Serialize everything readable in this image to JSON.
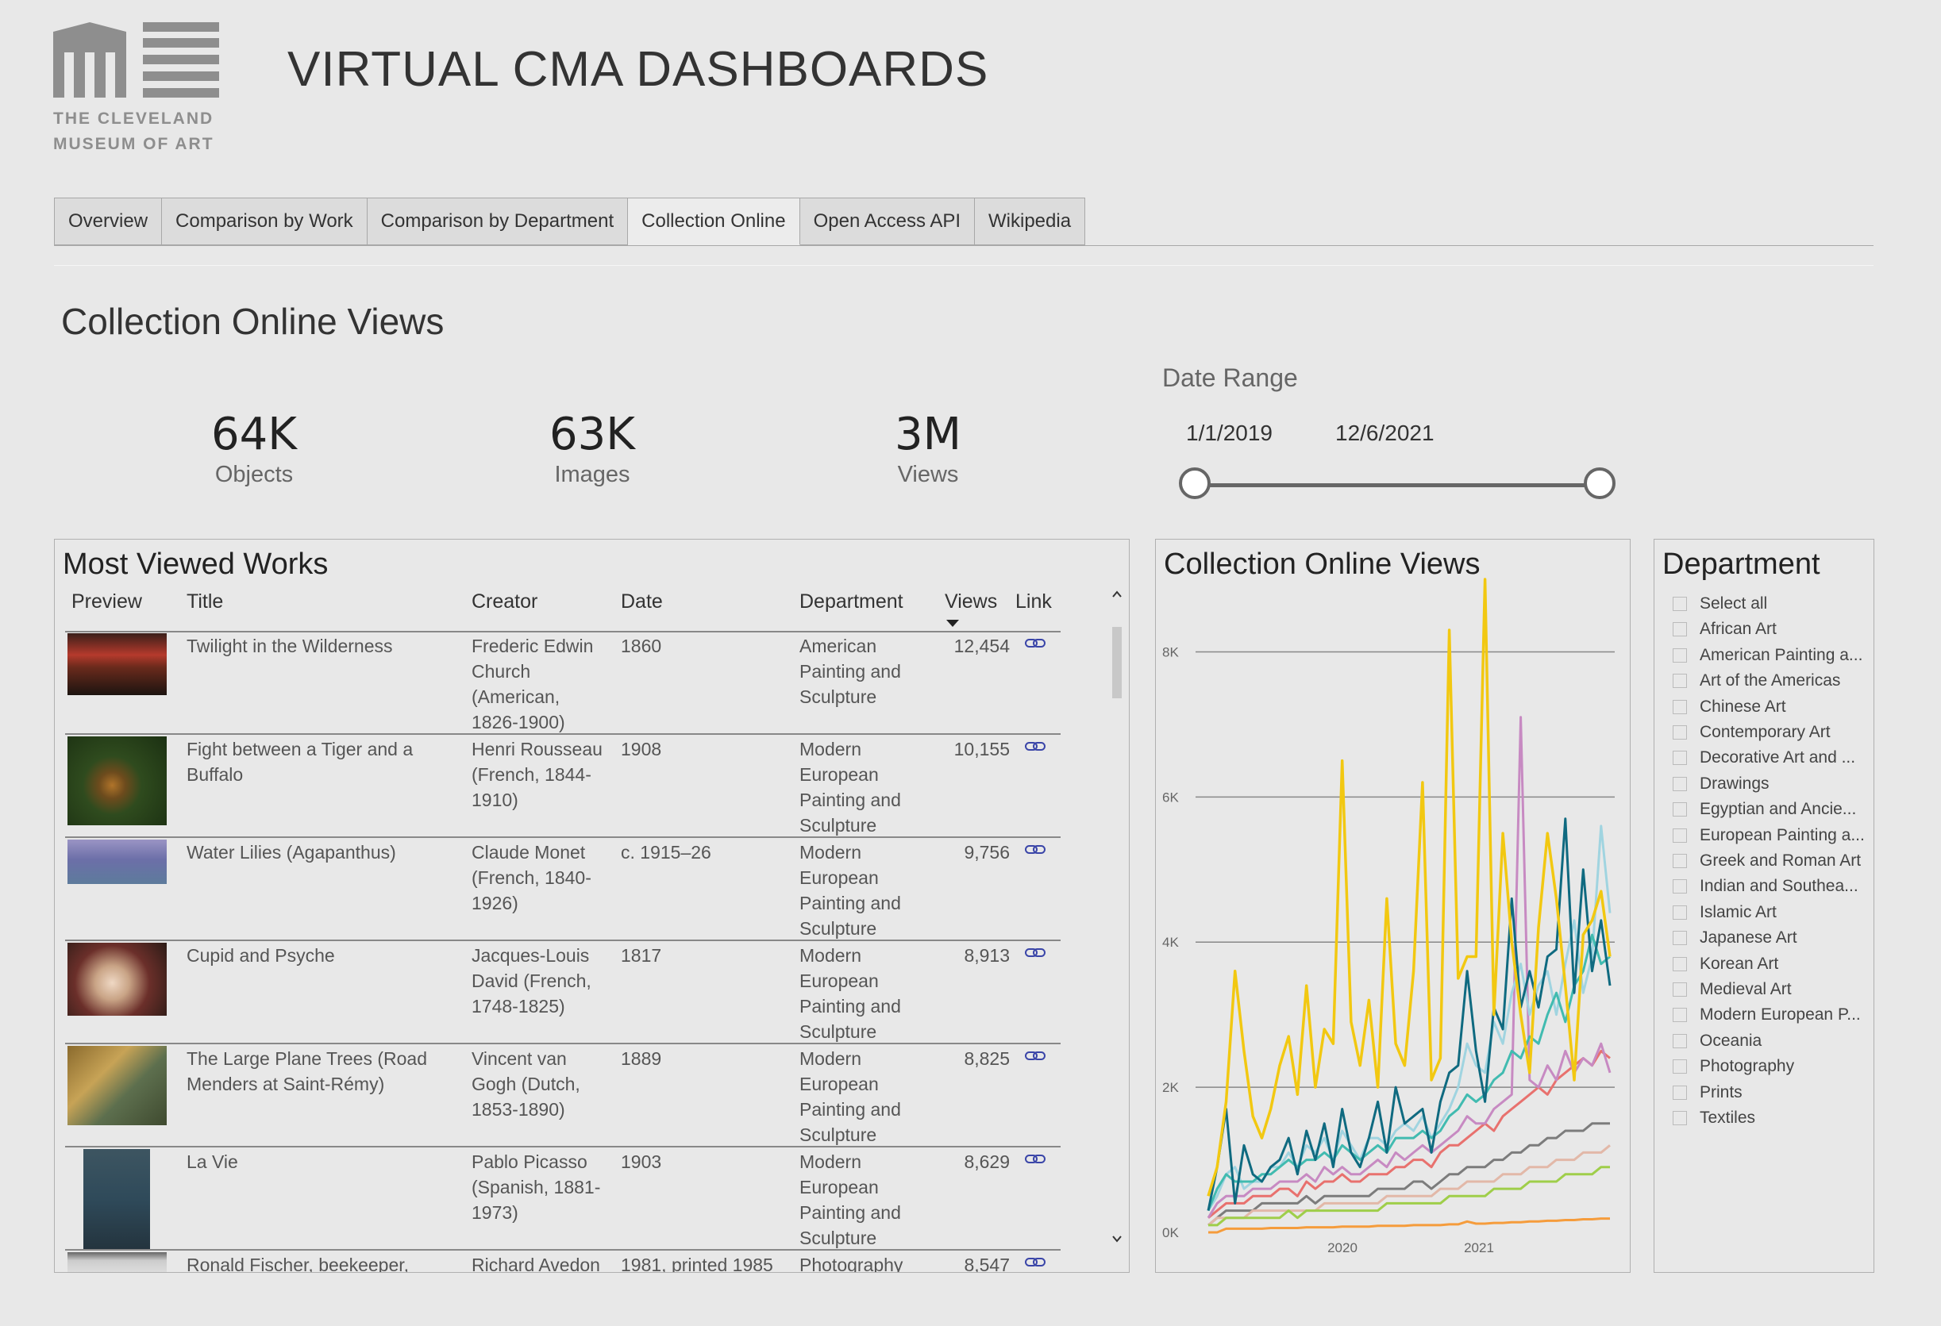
{
  "header": {
    "logo_line1": "THE CLEVELAND",
    "logo_line2": "MUSEUM OF ART",
    "title": "VIRTUAL CMA DASHBOARDS"
  },
  "tabs": [
    {
      "label": "Overview",
      "active": false
    },
    {
      "label": "Comparison by Work",
      "active": false
    },
    {
      "label": "Comparison by Department",
      "active": false
    },
    {
      "label": "Collection Online",
      "active": true
    },
    {
      "label": "Open Access API",
      "active": false
    },
    {
      "label": "Wikipedia",
      "active": false
    }
  ],
  "page": {
    "heading": "Collection Online Views"
  },
  "kpis": [
    {
      "value": "64K",
      "label": "Objects"
    },
    {
      "value": "63K",
      "label": "Images"
    },
    {
      "value": "3M",
      "label": "Views"
    }
  ],
  "date_range": {
    "label": "Date Range",
    "start": "1/1/2019",
    "end": "12/6/2021"
  },
  "works_table": {
    "title": "Most Viewed Works",
    "columns": [
      "Preview",
      "Title",
      "Creator",
      "Date",
      "Department",
      "Views",
      "Link"
    ],
    "sort_column": "Views",
    "rows": [
      {
        "title": "Twilight in the Wilderness",
        "creator": "Frederic Edwin Church (American, 1826-1900)",
        "date": "1860",
        "department": "American Painting and Sculpture",
        "views": "12,454"
      },
      {
        "title": "Fight between a Tiger and a Buffalo",
        "creator": "Henri Rousseau (French, 1844-1910)",
        "date": "1908",
        "department": "Modern European Painting and Sculpture",
        "views": "10,155"
      },
      {
        "title": "Water Lilies (Agapanthus)",
        "creator": "Claude Monet (French, 1840-1926)",
        "date": "c. 1915–26",
        "department": "Modern European Painting and Sculpture",
        "views": "9,756"
      },
      {
        "title": "Cupid and Psyche",
        "creator": "Jacques-Louis David (French, 1748-1825)",
        "date": "1817",
        "department": "Modern European Painting and Sculpture",
        "views": "8,913"
      },
      {
        "title": "The Large Plane Trees (Road Menders at Saint-Rémy)",
        "creator": "Vincent van Gogh (Dutch, 1853-1890)",
        "date": "1889",
        "department": "Modern European Painting and Sculpture",
        "views": "8,825"
      },
      {
        "title": "La Vie",
        "creator": "Pablo Picasso (Spanish, 1881-1973)",
        "date": "1903",
        "department": "Modern European Painting and Sculpture",
        "views": "8,629"
      },
      {
        "title": "Ronald Fischer, beekeeper,",
        "creator": "Richard Avedon",
        "date": "1981, printed 1985",
        "department": "Photography",
        "views": "8,547"
      }
    ]
  },
  "views_chart": {
    "title": "Collection Online Views",
    "chart_data": {
      "type": "line",
      "title": "Collection Online Views",
      "x_ticks": [
        "2020",
        "2021"
      ],
      "y_ticks": [
        "0K",
        "2K",
        "4K",
        "6K",
        "8K"
      ],
      "ylim": [
        0,
        9000
      ],
      "xlim": [
        "2019-01",
        "2021-12"
      ],
      "grid": true,
      "series": [
        {
          "color": "#f2c811",
          "values": [
            500,
            900,
            1800,
            3600,
            2500,
            1600,
            1300,
            1700,
            2300,
            2700,
            1900,
            3400,
            2000,
            2800,
            2600,
            6500,
            2900,
            2300,
            3200,
            2000,
            4600,
            2600,
            2300,
            3600,
            6200,
            2100,
            2400,
            8300,
            3500,
            3800,
            3800,
            9000,
            3000,
            5500,
            4000,
            3000,
            2200,
            4200,
            5500,
            4600,
            3400,
            2100,
            4100,
            4300,
            4700,
            3800
          ]
        },
        {
          "color": "#0f6a80",
          "values": [
            300,
            900,
            1700,
            400,
            1200,
            800,
            700,
            900,
            1000,
            1300,
            800,
            1400,
            1000,
            1500,
            900,
            1700,
            1100,
            900,
            1300,
            1800,
            1100,
            2000,
            1500,
            1600,
            1700,
            1100,
            1800,
            2200,
            2300,
            3600,
            2500,
            1800,
            3100,
            2800,
            4600,
            3100,
            3600,
            3100,
            3800,
            3900,
            5700,
            3300,
            5000,
            3600,
            4300,
            3400
          ]
        },
        {
          "color": "#a0d4e0",
          "values": [
            300,
            500,
            800,
            900,
            600,
            700,
            700,
            900,
            900,
            1100,
            900,
            1200,
            1100,
            1300,
            1000,
            1400,
            1200,
            1000,
            1300,
            1300,
            1200,
            1400,
            1500,
            1400,
            1600,
            1300,
            1500,
            1700,
            2000,
            2600,
            2300,
            2200,
            2900,
            2600,
            3300,
            3700,
            3000,
            3400,
            3600,
            3000,
            3700,
            4300,
            3300,
            3800,
            5600,
            4400
          ]
        },
        {
          "color": "#c78ac2",
          "values": [
            200,
            400,
            500,
            500,
            500,
            600,
            600,
            600,
            700,
            700,
            700,
            800,
            700,
            900,
            800,
            900,
            800,
            800,
            900,
            1000,
            900,
            1100,
            1000,
            1100,
            1200,
            1100,
            1200,
            1300,
            1400,
            1600,
            1500,
            1500,
            1700,
            1800,
            1900,
            7100,
            2100,
            2000,
            2300,
            2100,
            2500,
            2200,
            2400,
            2300,
            2600,
            2200
          ]
        },
        {
          "color": "#41bbb0",
          "values": [
            300,
            600,
            800,
            700,
            700,
            700,
            800,
            800,
            900,
            1000,
            900,
            1000,
            1000,
            1100,
            1000,
            1200,
            1100,
            1000,
            1100,
            1200,
            1100,
            1300,
            1300,
            1300,
            1400,
            1300,
            1400,
            1600,
            1700,
            1900,
            1800,
            1900,
            2100,
            2200,
            2500,
            2400,
            2700,
            2600,
            3000,
            3300,
            2900,
            3400,
            3600,
            4100,
            3700,
            3800
          ]
        },
        {
          "color": "#e8716e",
          "values": [
            200,
            300,
            400,
            400,
            400,
            500,
            500,
            500,
            600,
            600,
            500,
            700,
            600,
            700,
            700,
            800,
            700,
            700,
            800,
            800,
            800,
            900,
            900,
            1000,
            1000,
            900,
            1100,
            1200,
            1200,
            1300,
            1400,
            1500,
            1400,
            1600,
            1700,
            1800,
            1900,
            2000,
            1900,
            2100,
            2200,
            2300,
            2400,
            2300,
            2500,
            2400
          ]
        },
        {
          "color": "#7c7c7c",
          "values": [
            100,
            200,
            300,
            300,
            300,
            300,
            400,
            400,
            400,
            400,
            400,
            500,
            400,
            500,
            500,
            500,
            500,
            500,
            500,
            600,
            600,
            600,
            600,
            700,
            700,
            600,
            700,
            800,
            800,
            900,
            900,
            900,
            1000,
            1000,
            1100,
            1100,
            1200,
            1200,
            1300,
            1300,
            1400,
            1400,
            1400,
            1500,
            1500,
            1500
          ]
        },
        {
          "color": "#e2b8a8",
          "values": [
            100,
            200,
            200,
            200,
            200,
            300,
            300,
            300,
            300,
            300,
            300,
            300,
            300,
            400,
            400,
            400,
            400,
            400,
            400,
            400,
            500,
            500,
            500,
            500,
            500,
            500,
            600,
            600,
            600,
            700,
            700,
            700,
            700,
            800,
            800,
            800,
            900,
            900,
            900,
            1000,
            1000,
            1000,
            1100,
            1100,
            1100,
            1200
          ]
        },
        {
          "color": "#9fce4a",
          "values": [
            100,
            100,
            200,
            200,
            200,
            200,
            200,
            200,
            200,
            300,
            200,
            300,
            300,
            300,
            300,
            300,
            300,
            300,
            300,
            300,
            400,
            400,
            400,
            400,
            400,
            400,
            400,
            500,
            500,
            500,
            500,
            500,
            600,
            600,
            600,
            600,
            700,
            700,
            700,
            700,
            800,
            800,
            800,
            800,
            900,
            900
          ]
        },
        {
          "color": "#f59c3c",
          "values": [
            0,
            0,
            50,
            50,
            50,
            50,
            50,
            60,
            60,
            60,
            60,
            70,
            70,
            70,
            70,
            80,
            80,
            80,
            80,
            90,
            90,
            90,
            90,
            100,
            100,
            100,
            100,
            110,
            110,
            150,
            120,
            120,
            130,
            130,
            140,
            140,
            150,
            150,
            160,
            160,
            170,
            170,
            180,
            180,
            190,
            190
          ]
        }
      ]
    }
  },
  "department": {
    "title": "Department",
    "items": [
      "Select all",
      "African Art",
      "American Painting a...",
      "Art of the Americas",
      "Chinese Art",
      "Contemporary Art",
      "Decorative Art and ...",
      "Drawings",
      "Egyptian and Ancie...",
      "European Painting a...",
      "Greek and Roman Art",
      "Indian and Southea...",
      "Islamic Art",
      "Japanese Art",
      "Korean Art",
      "Medieval Art",
      "Modern European P...",
      "Oceania",
      "Photography",
      "Prints",
      "Textiles"
    ]
  }
}
